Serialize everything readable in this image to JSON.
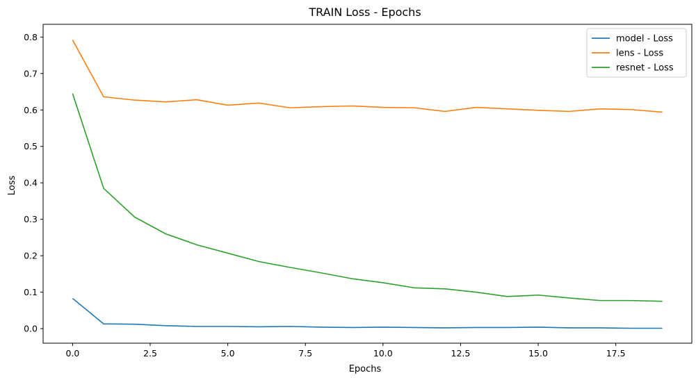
{
  "chart_data": {
    "type": "line",
    "title": "TRAIN Loss - Epochs",
    "xlabel": "Epochs",
    "ylabel": "Loss",
    "xlim": [
      -0.95,
      19.95
    ],
    "ylim": [
      -0.04,
      0.835
    ],
    "xticks": [
      0.0,
      2.5,
      5.0,
      7.5,
      10.0,
      12.5,
      15.0,
      17.5
    ],
    "xtick_labels": [
      "0.0",
      "2.5",
      "5.0",
      "7.5",
      "10.0",
      "12.5",
      "15.0",
      "17.5"
    ],
    "yticks": [
      0.0,
      0.1,
      0.2,
      0.3,
      0.4,
      0.5,
      0.6,
      0.7,
      0.8
    ],
    "ytick_labels": [
      "0.0",
      "0.1",
      "0.2",
      "0.3",
      "0.4",
      "0.5",
      "0.6",
      "0.7",
      "0.8"
    ],
    "grid": false,
    "legend_position": "top-right",
    "x": [
      0,
      1,
      2,
      3,
      4,
      5,
      6,
      7,
      8,
      9,
      10,
      11,
      12,
      13,
      14,
      15,
      16,
      17,
      18,
      19
    ],
    "series": [
      {
        "name": "model - Loss",
        "color": "#1f77b4",
        "values": [
          0.083,
          0.013,
          0.012,
          0.008,
          0.006,
          0.006,
          0.005,
          0.006,
          0.004,
          0.003,
          0.004,
          0.003,
          0.002,
          0.003,
          0.003,
          0.004,
          0.002,
          0.002,
          0.001,
          0.001
        ]
      },
      {
        "name": "lens - Loss",
        "color": "#ff7f0e",
        "values": [
          0.792,
          0.636,
          0.627,
          0.622,
          0.628,
          0.613,
          0.619,
          0.606,
          0.609,
          0.611,
          0.607,
          0.606,
          0.596,
          0.607,
          0.603,
          0.599,
          0.596,
          0.603,
          0.601,
          0.594
        ]
      },
      {
        "name": "resnet - Loss",
        "color": "#2ca02c",
        "values": [
          0.645,
          0.385,
          0.306,
          0.26,
          0.23,
          0.207,
          0.184,
          0.168,
          0.153,
          0.137,
          0.126,
          0.112,
          0.109,
          0.1,
          0.088,
          0.092,
          0.084,
          0.077,
          0.077,
          0.075
        ]
      }
    ]
  }
}
